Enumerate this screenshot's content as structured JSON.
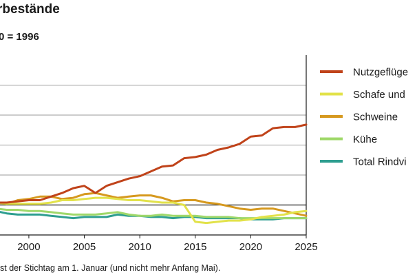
{
  "chart_data": {
    "type": "line",
    "title": "rbestände",
    "subtitle": "0 = 1996",
    "footnote": "st der Stichtag am 1. Januar (und nicht mehr Anfang Mai).",
    "x_tick_labels": [
      "2000",
      "2005",
      "2010",
      "2015",
      "2020",
      "2025"
    ],
    "x_ticks": [
      2000,
      2005,
      2010,
      2015,
      2020,
      2025
    ],
    "xlim": [
      1997.4,
      2025
    ],
    "ylim": [
      75,
      225
    ],
    "gridlines": [
      100,
      125,
      150,
      175,
      200
    ],
    "baseline": 100,
    "grid": true,
    "legend_position": "right",
    "colors": {
      "Nutzgeflügel": "#c0431a",
      "Schafe": "#e2e24a",
      "Schweine": "#d6991f",
      "Kühe": "#9fd86a",
      "Total Rindvieh": "#2e9e90"
    },
    "series": [
      {
        "name": "Nutzgeflügel",
        "legend_label": "Nutzgeflüge",
        "x": [
          1997,
          1998,
          1999,
          2000,
          2001,
          2002,
          2003,
          2004,
          2005,
          2006,
          2007,
          2008,
          2009,
          2010,
          2011,
          2012,
          2013,
          2014,
          2015,
          2016,
          2017,
          2018,
          2019,
          2020,
          2021,
          2022,
          2023,
          2024,
          2025
        ],
        "values": [
          102,
          102,
          103,
          104,
          104,
          107,
          110,
          114,
          116,
          110,
          116,
          119,
          122,
          124,
          128,
          132,
          133,
          139,
          140,
          142,
          146,
          148,
          151,
          157,
          158,
          164,
          165,
          165,
          167
        ]
      },
      {
        "name": "Schafe",
        "legend_label": "Schafe und",
        "x": [
          1997,
          1998,
          1999,
          2000,
          2001,
          2002,
          2003,
          2004,
          2005,
          2006,
          2007,
          2008,
          2009,
          2010,
          2011,
          2012,
          2013,
          2014,
          2015,
          2016,
          2017,
          2018,
          2019,
          2020,
          2021,
          2022,
          2023,
          2024,
          2025
        ],
        "values": [
          102,
          101,
          101,
          101,
          101,
          102,
          104,
          104,
          105,
          106,
          106,
          105,
          104,
          104,
          103,
          102,
          102,
          100,
          86,
          85,
          86,
          87,
          87,
          88,
          90,
          91,
          92,
          94,
          95
        ]
      },
      {
        "name": "Schweine",
        "legend_label": "Schweine",
        "x": [
          1997,
          1998,
          1999,
          2000,
          2001,
          2002,
          2003,
          2004,
          2005,
          2006,
          2007,
          2008,
          2009,
          2010,
          2011,
          2012,
          2013,
          2014,
          2015,
          2016,
          2017,
          2018,
          2019,
          2020,
          2021,
          2022,
          2023,
          2024,
          2025
        ],
        "values": [
          102,
          101,
          104,
          105,
          107,
          107,
          105,
          106,
          109,
          110,
          108,
          106,
          107,
          108,
          108,
          106,
          103,
          104,
          104,
          102,
          101,
          99,
          97,
          96,
          97,
          97,
          95,
          93,
          91
        ]
      },
      {
        "name": "Kühe",
        "legend_label": "Kühe",
        "x": [
          1997,
          1998,
          1999,
          2000,
          2001,
          2002,
          2003,
          2004,
          2005,
          2006,
          2007,
          2008,
          2009,
          2010,
          2011,
          2012,
          2013,
          2014,
          2015,
          2016,
          2017,
          2018,
          2019,
          2020,
          2021,
          2022,
          2023,
          2024,
          2025
        ],
        "values": [
          97,
          96,
          96,
          95,
          95,
          94,
          93,
          92,
          92,
          92,
          93,
          94,
          92,
          91,
          91,
          92,
          91,
          91,
          91,
          90,
          90,
          90,
          89,
          89,
          89,
          89,
          89,
          89,
          89
        ]
      },
      {
        "name": "Total Rindvieh",
        "legend_label": "Total Rindvi",
        "x": [
          1997,
          1998,
          1999,
          2000,
          2001,
          2002,
          2003,
          2004,
          2005,
          2006,
          2007,
          2008,
          2009,
          2010,
          2011,
          2012,
          2013,
          2014,
          2015,
          2016,
          2017,
          2018,
          2019,
          2020,
          2021,
          2022,
          2023,
          2024,
          2025
        ],
        "values": [
          95,
          93,
          92,
          92,
          92,
          91,
          90,
          89,
          90,
          90,
          90,
          92,
          91,
          91,
          90,
          90,
          89,
          90,
          90,
          89,
          89,
          89,
          89,
          88,
          88,
          88,
          89,
          89,
          89
        ]
      }
    ]
  }
}
